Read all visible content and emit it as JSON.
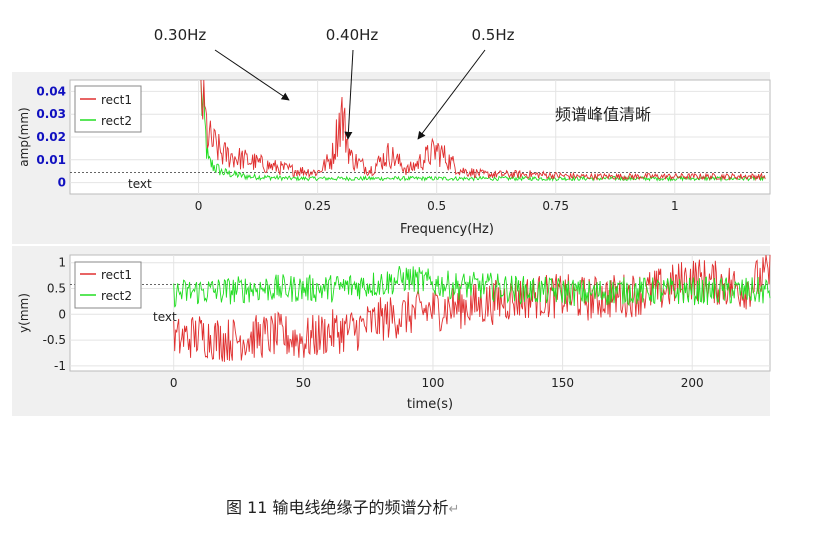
{
  "chart_data": [
    {
      "type": "line",
      "xlabel": "Frequency(Hz)",
      "ylabel": "amp(mm)",
      "xlim": [
        -0.27,
        1.2
      ],
      "ylim": [
        -0.005,
        0.045
      ],
      "xticks": [
        0,
        0.25,
        0.5,
        0.75,
        1
      ],
      "xtick_labels": [
        "0",
        "0.25",
        "0.5",
        "0.75",
        "1"
      ],
      "yticks": [
        0,
        0.01,
        0.02,
        0.03,
        0.04
      ],
      "ytick_labels": [
        "0",
        "0.01",
        "0.02",
        "0.03",
        "0.04"
      ],
      "legend": {
        "position": "top-left",
        "entries": [
          "rect1",
          "rect2"
        ]
      },
      "series": [
        {
          "name": "rect1",
          "color": "#e03030",
          "x": [
            0.005,
            0.02,
            0.05,
            0.1,
            0.15,
            0.2,
            0.25,
            0.28,
            0.3,
            0.32,
            0.36,
            0.4,
            0.44,
            0.5,
            0.55,
            0.6,
            0.7,
            0.8,
            0.9,
            1.0,
            1.1,
            1.19
          ],
          "y": [
            0.045,
            0.022,
            0.014,
            0.011,
            0.008,
            0.006,
            0.005,
            0.012,
            0.034,
            0.012,
            0.006,
            0.014,
            0.006,
            0.016,
            0.006,
            0.004,
            0.004,
            0.003,
            0.003,
            0.003,
            0.003,
            0.003
          ]
        },
        {
          "name": "rect2",
          "color": "#22dd22",
          "x": [
            0.005,
            0.02,
            0.05,
            0.1,
            0.2,
            0.3,
            0.4,
            0.5,
            0.6,
            0.7,
            0.8,
            0.9,
            1.0,
            1.1,
            1.19
          ],
          "y": [
            0.045,
            0.01,
            0.005,
            0.003,
            0.002,
            0.002,
            0.002,
            0.002,
            0.002,
            0.002,
            0.002,
            0.002,
            0.002,
            0.002,
            0.002
          ]
        }
      ],
      "reference_line": {
        "y": 0.0045,
        "label": "text"
      },
      "annotations": [
        {
          "text": "0.30Hz",
          "x": 0.3,
          "y": 0.034
        },
        {
          "text": "0.40Hz",
          "x": 0.4,
          "y": 0.014
        },
        {
          "text": "0.5Hz",
          "x": 0.5,
          "y": 0.016
        }
      ],
      "side_note": "频谱峰值清晰"
    },
    {
      "type": "line",
      "xlabel": "time(s)",
      "ylabel": "y(mm)",
      "xlim": [
        -40,
        230
      ],
      "ylim": [
        -1.1,
        1.15
      ],
      "xticks": [
        0,
        50,
        100,
        150,
        200
      ],
      "xtick_labels": [
        "0",
        "50",
        "100",
        "150",
        "200"
      ],
      "yticks": [
        -1,
        -0.5,
        0,
        0.5,
        1
      ],
      "ytick_labels": [
        "-1",
        "-0.5",
        "0",
        "0.5",
        "1"
      ],
      "legend": {
        "position": "top-left",
        "entries": [
          "rect1",
          "rect2"
        ]
      },
      "series": [
        {
          "name": "rect1",
          "color": "#e03030",
          "x": [
            0,
            10,
            20,
            30,
            40,
            50,
            60,
            70,
            80,
            90,
            100,
            110,
            120,
            130,
            140,
            150,
            160,
            170,
            180,
            190,
            200,
            210,
            220,
            230
          ],
          "y": [
            -0.5,
            -0.4,
            -0.5,
            -0.45,
            -0.4,
            -0.5,
            -0.35,
            -0.3,
            -0.1,
            0.0,
            0.1,
            0.15,
            0.2,
            0.3,
            0.35,
            0.35,
            0.3,
            0.35,
            0.4,
            0.5,
            0.7,
            0.6,
            0.5,
            0.8
          ]
        },
        {
          "name": "rect2",
          "color": "#22dd22",
          "x": [
            0,
            10,
            20,
            30,
            40,
            50,
            60,
            70,
            80,
            90,
            100,
            110,
            120,
            130,
            140,
            150,
            160,
            170,
            180,
            190,
            200,
            210,
            220,
            230
          ],
          "y": [
            0.4,
            0.45,
            0.45,
            0.5,
            0.5,
            0.5,
            0.5,
            0.55,
            0.6,
            0.7,
            0.6,
            0.55,
            0.55,
            0.5,
            0.45,
            0.45,
            0.4,
            0.45,
            0.45,
            0.45,
            0.45,
            0.45,
            0.45,
            0.45
          ]
        }
      ],
      "reference_line": {
        "y": 0.58,
        "label": "text"
      }
    }
  ],
  "caption": {
    "text": "图 11  输电线绝缘子的频谱分析",
    "return_mark": "↵"
  },
  "colors": {
    "rect1": "#e03030",
    "rect2": "#22dd22",
    "ytick_top": "#1010c0"
  }
}
